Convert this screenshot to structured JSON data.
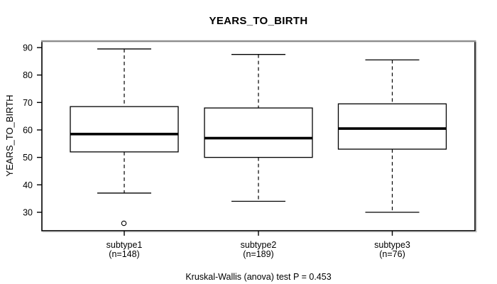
{
  "chart_data": {
    "type": "boxplot",
    "title": "YEARS_TO_BIRTH",
    "ylabel": "YEARS_TO_BIRTH",
    "annotation": "Kruskal-Wallis (anova) test P = 0.453",
    "y_ticks": [
      90,
      80,
      70,
      60,
      50,
      40,
      30
    ],
    "ylim": [
      23.5,
      92.5
    ],
    "grid": false,
    "legend": null,
    "groups": [
      {
        "label": "subtype1",
        "n_label": "(n=148)",
        "whisker_low": 37,
        "q1": 52,
        "median": 58.5,
        "q3": 68.5,
        "whisker_high": 89.5,
        "outliers": [
          26
        ]
      },
      {
        "label": "subtype2",
        "n_label": "(n=189)",
        "whisker_low": 34,
        "q1": 50,
        "median": 57,
        "q3": 68,
        "whisker_high": 87.5,
        "outliers": []
      },
      {
        "label": "subtype3",
        "n_label": "(n=76)",
        "whisker_low": 30,
        "q1": 53,
        "median": 60.5,
        "q3": 69.5,
        "whisker_high": 85.5,
        "outliers": []
      }
    ]
  }
}
